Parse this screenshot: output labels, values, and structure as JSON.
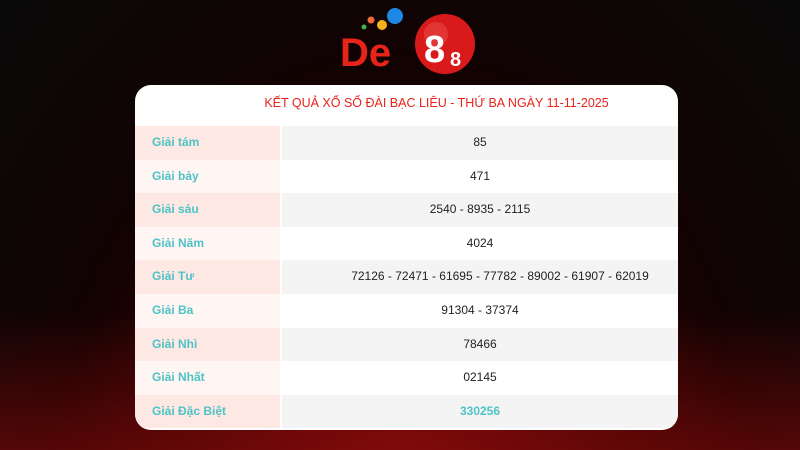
{
  "logo": {
    "text": "De88",
    "accent": "#e8231a"
  },
  "title": "KẾT QUẢ XỔ SỐ ĐÀI BẠC LIÊU - THỨ BA NGÀY 11-11-2025",
  "rows": [
    {
      "label": "Giải tám",
      "value": "85"
    },
    {
      "label": "Giải bảy",
      "value": "471"
    },
    {
      "label": "Giải sáu",
      "value": "2540 - 8935 - 2115"
    },
    {
      "label": "Giải Năm",
      "value": "4024"
    },
    {
      "label": "Giải Tư",
      "value": "72126 - 72471 - 61695 - 77782 - 89002 - 61907 - 62019"
    },
    {
      "label": "Giải Ba",
      "value": "91304 - 37374"
    },
    {
      "label": "Giải Nhì",
      "value": "78466"
    },
    {
      "label": "Giải Nhất",
      "value": "02145"
    },
    {
      "label": "Giải Đặc Biệt",
      "value": "330256"
    }
  ],
  "colors": {
    "label": "#4ec3c6",
    "title": "#e8231a"
  }
}
